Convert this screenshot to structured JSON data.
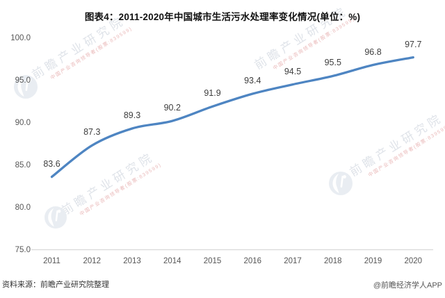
{
  "title": "图表4：2011-2020年中国城市生活污水处理率变化情况(单位：%)",
  "chart_data": {
    "type": "line",
    "x": [
      "2011",
      "2012",
      "2013",
      "2014",
      "2015",
      "2016",
      "2017",
      "2018",
      "2019",
      "2020"
    ],
    "values": [
      83.6,
      87.3,
      89.3,
      90.2,
      91.9,
      93.4,
      94.5,
      95.5,
      96.8,
      97.7
    ],
    "title": "图表4：2011-2020年中国城市生活污水处理率变化情况(单位：%)",
    "xlabel": "",
    "ylabel": "",
    "unit": "%",
    "ylim": [
      75,
      100
    ],
    "ytick_interval": 5,
    "ytick_labels": [
      "100.0",
      "95.0",
      "90.0",
      "85.0",
      "80.0",
      "75.0"
    ],
    "grid": false,
    "legend_position": "none",
    "data_labels_shown": true,
    "smooth_line": true
  },
  "footer": {
    "source_label": "资料来源：前瞻产业研究院整理",
    "credit_label": "@前瞻经济学人APP"
  },
  "watermark": {
    "main_text": "前瞻产业研究院",
    "sub_text": "中国产业咨询领导者(股票:839599)",
    "main_color": "#dfe3e9",
    "sub_color": "#eab9b9",
    "logo_color": "#e9edf2"
  },
  "colors": {
    "line": "#4e85c2",
    "axis_line": "#d9d9d9",
    "tick_text": "#565656",
    "data_label_text": "#3d3d3d",
    "title_text": "#111111"
  }
}
